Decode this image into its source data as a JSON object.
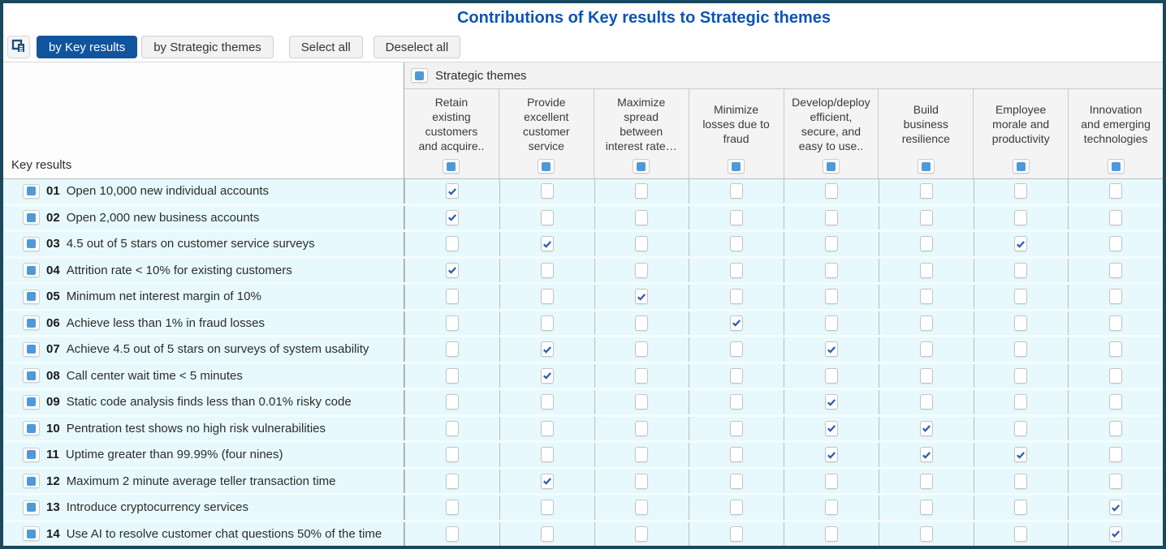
{
  "title": "Contributions of Key results to Strategic themes",
  "toolbar": {
    "copy_icon": "copy-report-icon",
    "buttons": [
      {
        "label": "by Key results",
        "active": true
      },
      {
        "label": "by Strategic themes",
        "active": false
      },
      {
        "label": "Select all",
        "active": false
      },
      {
        "label": "Deselect all",
        "active": false
      }
    ]
  },
  "matrix": {
    "row_axis_label": "Key results",
    "col_axis_label": "Strategic themes",
    "columns": [
      "Retain\nexisting\ncustomers\nand acquire..",
      "Provide\nexcellent\ncustomer\nservice",
      "Maximize\nspread\nbetween\ninterest rate…",
      "Minimize\nlosses due to\nfraud",
      "Develop/deploy\nefficient,\nsecure, and\neasy to use..",
      "Build\nbusiness\nresilience",
      "Employee\nmorale and\nproductivity",
      "Innovation\nand emerging\ntechnologies"
    ],
    "rows": [
      {
        "num": "01",
        "label": "Open 10,000 new individual accounts",
        "checks": [
          true,
          false,
          false,
          false,
          false,
          false,
          false,
          false
        ]
      },
      {
        "num": "02",
        "label": "Open 2,000 new business accounts",
        "checks": [
          true,
          false,
          false,
          false,
          false,
          false,
          false,
          false
        ]
      },
      {
        "num": "03",
        "label": "4.5 out of 5 stars on customer service surveys",
        "checks": [
          false,
          true,
          false,
          false,
          false,
          false,
          true,
          false
        ]
      },
      {
        "num": "04",
        "label": "Attrition rate < 10% for existing customers",
        "checks": [
          true,
          false,
          false,
          false,
          false,
          false,
          false,
          false
        ]
      },
      {
        "num": "05",
        "label": "Minimum net interest margin of 10%",
        "checks": [
          false,
          false,
          true,
          false,
          false,
          false,
          false,
          false
        ]
      },
      {
        "num": "06",
        "label": "Achieve less than 1% in fraud losses",
        "checks": [
          false,
          false,
          false,
          true,
          false,
          false,
          false,
          false
        ]
      },
      {
        "num": "07",
        "label": "Achieve 4.5 out of 5 stars on surveys of system usability",
        "checks": [
          false,
          true,
          false,
          false,
          true,
          false,
          false,
          false
        ]
      },
      {
        "num": "08",
        "label": "Call center wait time < 5 minutes",
        "checks": [
          false,
          true,
          false,
          false,
          false,
          false,
          false,
          false
        ]
      },
      {
        "num": "09",
        "label": "Static code analysis finds less than 0.01% risky code",
        "checks": [
          false,
          false,
          false,
          false,
          true,
          false,
          false,
          false
        ]
      },
      {
        "num": "10",
        "label": "Pentration test shows no high risk vulnerabilities",
        "checks": [
          false,
          false,
          false,
          false,
          true,
          true,
          false,
          false
        ]
      },
      {
        "num": "11",
        "label": "Uptime greater than 99.99% (four nines)",
        "checks": [
          false,
          false,
          false,
          false,
          true,
          true,
          true,
          false
        ]
      },
      {
        "num": "12",
        "label": "Maximum 2 minute average teller transaction time",
        "checks": [
          false,
          true,
          false,
          false,
          false,
          false,
          false,
          false
        ]
      },
      {
        "num": "13",
        "label": "Introduce cryptocurrency services",
        "checks": [
          false,
          false,
          false,
          false,
          false,
          false,
          false,
          true
        ]
      },
      {
        "num": "14",
        "label": "Use AI to resolve customer chat questions 50% of the time",
        "checks": [
          false,
          false,
          false,
          false,
          false,
          false,
          false,
          true
        ]
      }
    ]
  },
  "icons": {
    "copy": "copy-report-icon (overlapping square + document glyph)",
    "selector": "blue-square-icon (solid blue square in white button)",
    "check": "checkmark-icon (blue check in white box)"
  },
  "colors": {
    "frame": "#1a4860",
    "title_blue": "#0d54b6",
    "accent_button_blue": "#10549e",
    "icon_square_blue": "#4e9ad9",
    "checkmark_blue": "#2c5dae",
    "row_background": "#e7f9fc",
    "header_background": "#f2f2f2"
  }
}
